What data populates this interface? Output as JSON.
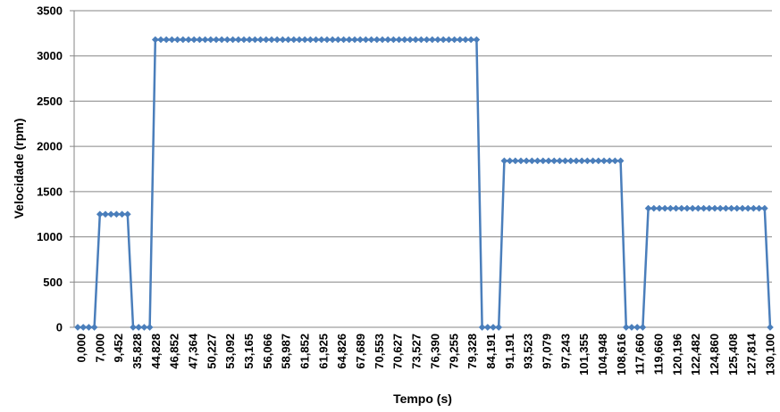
{
  "chart_data": {
    "type": "line",
    "xlabel": "Tempo (s)",
    "ylabel": "Velocidade (rpm)",
    "ylim": [
      0,
      3500
    ],
    "yticks": [
      0,
      500,
      1000,
      1500,
      2000,
      2500,
      3000,
      3500
    ],
    "grid": "horizontal",
    "legend": "none",
    "x_tick_labels": [
      "0,000",
      "7,000",
      "9,452",
      "35,828",
      "44,828",
      "46,852",
      "47,364",
      "50,227",
      "53,092",
      "53,165",
      "56,066",
      "58,987",
      "61,852",
      "61,925",
      "64,826",
      "67,689",
      "70,553",
      "70,627",
      "73,527",
      "76,390",
      "79,255",
      "79,328",
      "84,191",
      "91,191",
      "93,523",
      "97,079",
      "97,243",
      "101,355",
      "104,948",
      "108,616",
      "117,660",
      "119,660",
      "120,196",
      "122,482",
      "124,860",
      "125,408",
      "127,814",
      "130,100"
    ],
    "series": [
      {
        "color": "#4A7EBB",
        "segments": [
          {
            "count": 4,
            "value": 0
          },
          {
            "count": 6,
            "value": 1250
          },
          {
            "count": 4,
            "value": 0
          },
          {
            "count": 59,
            "value": 3180
          },
          {
            "count": 4,
            "value": 0
          },
          {
            "count": 22,
            "value": 1840
          },
          {
            "count": 4,
            "value": 0
          },
          {
            "count": 22,
            "value": 1315
          },
          {
            "count": 1,
            "value": 0
          }
        ]
      }
    ]
  }
}
